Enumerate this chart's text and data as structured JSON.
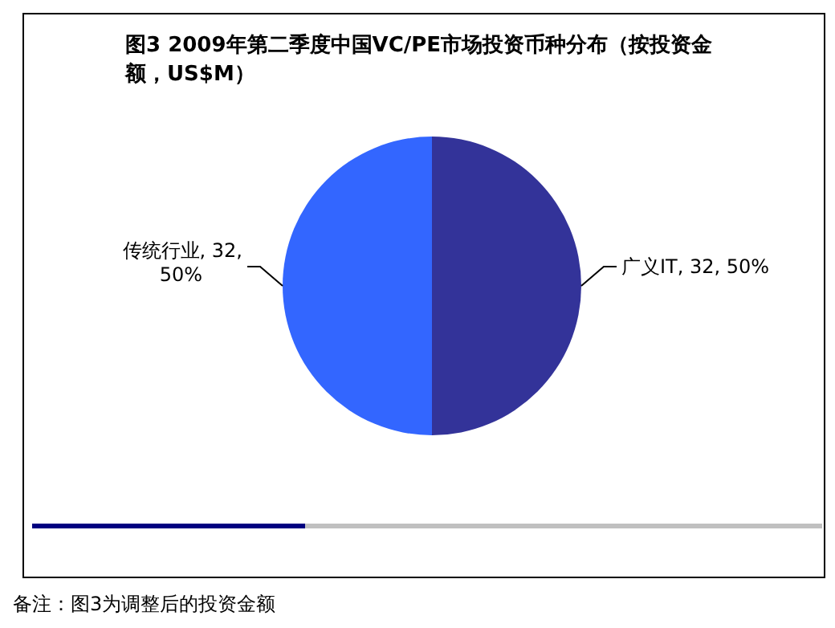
{
  "chart_data": {
    "type": "pie",
    "title": "图3 2009年第二季度中国VC/PE市场投资币种分布（按投资金额，US$M）",
    "categories": [
      "广义IT",
      "传统行业"
    ],
    "values": [
      32,
      32
    ],
    "colors": [
      "#333399",
      "#3366ff"
    ],
    "value_labels": [
      "32, 50%",
      "32, 50%"
    ],
    "annotations": [
      "备注：图3为调整后的投资金额"
    ]
  }
}
